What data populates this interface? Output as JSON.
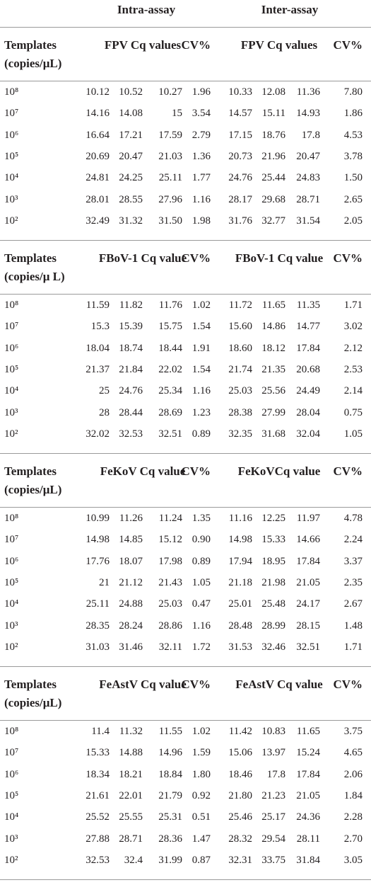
{
  "header": {
    "intra": "Intra-assay",
    "inter": "Inter-assay"
  },
  "sections": [
    {
      "templates_label": "Templates",
      "units_label": "(copies/μL)",
      "intra_title": "FPV Cq values",
      "intra_cv": "CV%",
      "inter_title": "FPV Cq values",
      "inter_cv": "CV%",
      "rows": [
        [
          "10⁸",
          "10.12",
          "10.52",
          "10.27",
          "1.96",
          "10.33",
          "12.08",
          "11.36",
          "7.80"
        ],
        [
          "10⁷",
          "14.16",
          "14.08",
          "15",
          "3.54",
          "14.57",
          "15.11",
          "14.93",
          "1.86"
        ],
        [
          "10⁶",
          "16.64",
          "17.21",
          "17.59",
          "2.79",
          "17.15",
          "18.76",
          "17.8",
          "4.53"
        ],
        [
          "10⁵",
          "20.69",
          "20.47",
          "21.03",
          "1.36",
          "20.73",
          "21.96",
          "20.47",
          "3.78"
        ],
        [
          "10⁴",
          "24.81",
          "24.25",
          "25.11",
          "1.77",
          "24.76",
          "25.44",
          "24.83",
          "1.50"
        ],
        [
          "10³",
          "28.01",
          "28.55",
          "27.96",
          "1.16",
          "28.17",
          "29.68",
          "28.71",
          "2.65"
        ],
        [
          "10²",
          "32.49",
          "31.32",
          "31.50",
          "1.98",
          "31.76",
          "32.77",
          "31.54",
          "2.05"
        ]
      ]
    },
    {
      "templates_label": "Templates",
      "units_label": "(copies/μ L)",
      "intra_title": "FBoV-1 Cq value",
      "intra_cv": "CV%",
      "inter_title": "FBoV-1 Cq value",
      "inter_cv": "CV%",
      "rows": [
        [
          "10⁸",
          "11.59",
          "11.82",
          "11.76",
          "1.02",
          "11.72",
          "11.65",
          "11.35",
          "1.71"
        ],
        [
          "10⁷",
          "15.3",
          "15.39",
          "15.75",
          "1.54",
          "15.60",
          "14.86",
          "14.77",
          "3.02"
        ],
        [
          "10⁶",
          "18.04",
          "18.74",
          "18.44",
          "1.91",
          "18.60",
          "18.12",
          "17.84",
          "2.12"
        ],
        [
          "10⁵",
          "21.37",
          "21.84",
          "22.02",
          "1.54",
          "21.74",
          "21.35",
          "20.68",
          "2.53"
        ],
        [
          "10⁴",
          "25",
          "24.76",
          "25.34",
          "1.16",
          "25.03",
          "25.56",
          "24.49",
          "2.14"
        ],
        [
          "10³",
          "28",
          "28.44",
          "28.69",
          "1.23",
          "28.38",
          "27.99",
          "28.04",
          "0.75"
        ],
        [
          "10²",
          "32.02",
          "32.53",
          "32.51",
          "0.89",
          "32.35",
          "31.68",
          "32.04",
          "1.05"
        ]
      ]
    },
    {
      "templates_label": "Templates",
      "units_label": "(copies/μL)",
      "intra_title": "FeKoV Cq value",
      "intra_cv": "CV%",
      "inter_title": "FeKoVCq value",
      "inter_cv": "CV%",
      "rows": [
        [
          "10⁸",
          "10.99",
          "11.26",
          "11.24",
          "1.35",
          "11.16",
          "12.25",
          "11.97",
          "4.78"
        ],
        [
          "10⁷",
          "14.98",
          "14.85",
          "15.12",
          "0.90",
          "14.98",
          "15.33",
          "14.66",
          "2.24"
        ],
        [
          "10⁶",
          "17.76",
          "18.07",
          "17.98",
          "0.89",
          "17.94",
          "18.95",
          "17.84",
          "3.37"
        ],
        [
          "10⁵",
          "21",
          "21.12",
          "21.43",
          "1.05",
          "21.18",
          "21.98",
          "21.05",
          "2.35"
        ],
        [
          "10⁴",
          "25.11",
          "24.88",
          "25.03",
          "0.47",
          "25.01",
          "25.48",
          "24.17",
          "2.67"
        ],
        [
          "10³",
          "28.35",
          "28.24",
          "28.86",
          "1.16",
          "28.48",
          "28.99",
          "28.15",
          "1.48"
        ],
        [
          "10²",
          "31.03",
          "31.46",
          "32.11",
          "1.72",
          "31.53",
          "32.46",
          "32.51",
          "1.71"
        ]
      ]
    },
    {
      "templates_label": "Templates",
      "units_label": "(copies/μL)",
      "intra_title": "FeAstV Cq value",
      "intra_cv": "CV%",
      "inter_title": "FeAstV Cq value",
      "inter_cv": "CV%",
      "rows": [
        [
          "10⁸",
          "11.4",
          "11.32",
          "11.55",
          "1.02",
          "11.42",
          "10.83",
          "11.65",
          "3.75"
        ],
        [
          "10⁷",
          "15.33",
          "14.88",
          "14.96",
          "1.59",
          "15.06",
          "13.97",
          "15.24",
          "4.65"
        ],
        [
          "10⁶",
          "18.34",
          "18.21",
          "18.84",
          "1.80",
          "18.46",
          "17.8",
          "17.84",
          "2.06"
        ],
        [
          "10⁵",
          "21.61",
          "22.01",
          "21.79",
          "0.92",
          "21.80",
          "21.23",
          "21.05",
          "1.84"
        ],
        [
          "10⁴",
          "25.52",
          "25.55",
          "25.31",
          "0.51",
          "25.46",
          "25.17",
          "24.36",
          "2.28"
        ],
        [
          "10³",
          "27.88",
          "28.71",
          "28.36",
          "1.47",
          "28.32",
          "29.54",
          "28.11",
          "2.70"
        ],
        [
          "10²",
          "32.53",
          "32.4",
          "31.99",
          "0.87",
          "32.31",
          "33.75",
          "31.84",
          "3.05"
        ]
      ]
    }
  ]
}
